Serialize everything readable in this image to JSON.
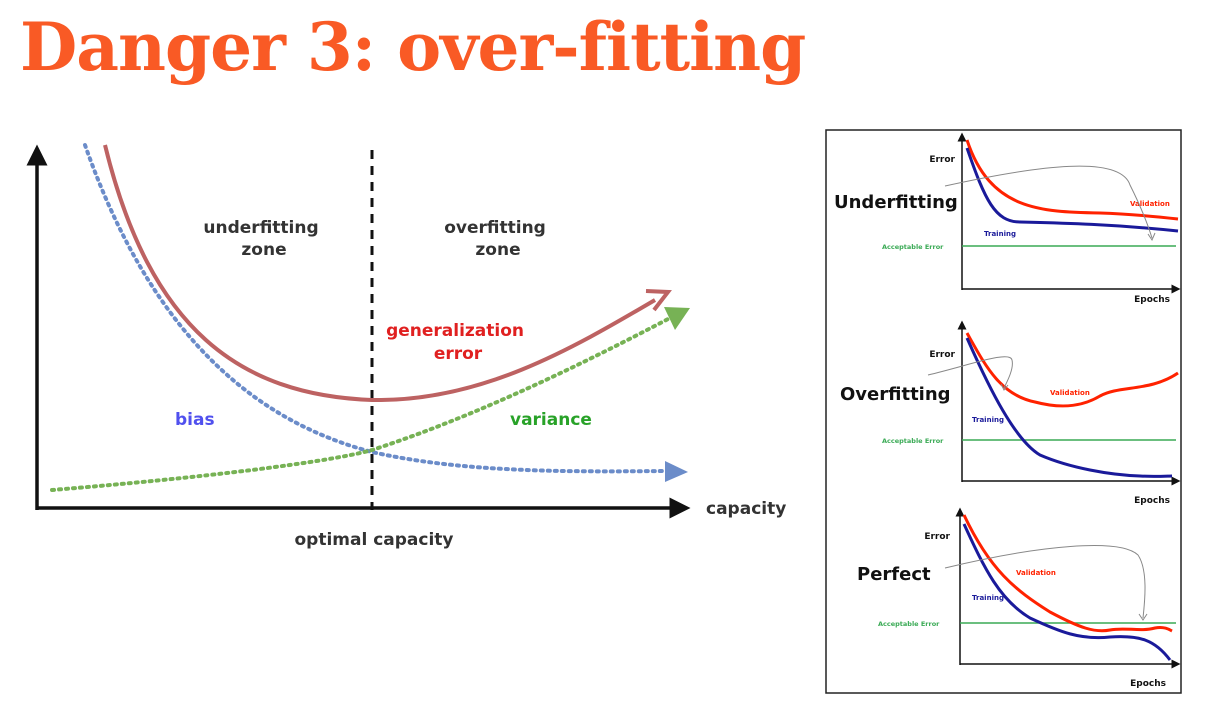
{
  "slide": {
    "title": "Danger 3: over-fitting"
  },
  "diagram": {
    "underfitting_zone": [
      "underfitting",
      "zone"
    ],
    "overfitting_zone": [
      "overfitting",
      "zone"
    ],
    "generalization_error": [
      "generalization",
      "error"
    ],
    "bias": "bias",
    "variance": "variance",
    "x_axis": "capacity",
    "optimal": "optimal capacity",
    "colors": {
      "generalization": "#bd6262",
      "bias": "#6b8cc9",
      "variance": "#77b255",
      "bias_text": "#5050ee",
      "variance_text": "#28a228",
      "gen_text": "#e02020"
    }
  },
  "panels": [
    {
      "name": "Underfitting",
      "error_label": "Error",
      "validation_label": "Validation",
      "training_label": "Training",
      "acceptable_label": "Acceptable Error",
      "epochs_label": "Epochs"
    },
    {
      "name": "Overfitting",
      "error_label": "Error",
      "validation_label": "Validation",
      "training_label": "Training",
      "acceptable_label": "Acceptable Error",
      "epochs_label": "Epochs"
    },
    {
      "name": "Perfect",
      "error_label": "Error",
      "validation_label": "Validation",
      "training_label": "Training",
      "acceptable_label": "Acceptable Error",
      "epochs_label": "Epochs"
    }
  ],
  "panel_colors": {
    "validation": "#ff2200",
    "training": "#1a1a9a",
    "acceptable": "#3aaa55"
  }
}
